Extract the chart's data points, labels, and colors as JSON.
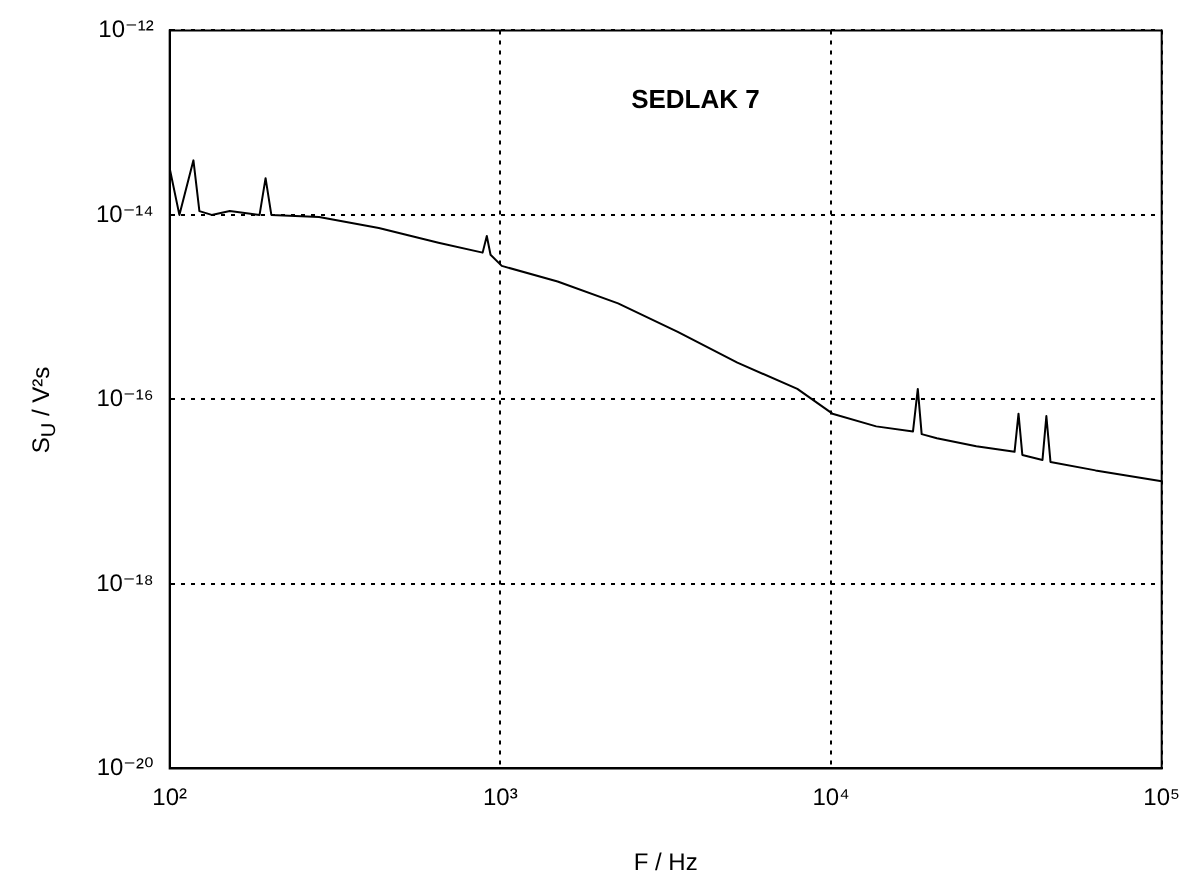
{
  "chart_data": {
    "type": "line",
    "xlabel": "F / Hz",
    "ylabel": "S$_{U}$ / V²s",
    "annotations": [
      "SEDLAK 7"
    ],
    "x": [
      100,
      107,
      118,
      123,
      134,
      152,
      187,
      195,
      203,
      283,
      429,
      650,
      884,
      910,
      934,
      1010,
      1490,
      2270,
      3440,
      5210,
      7910,
      10100,
      13700,
      17700,
      18300,
      18800,
      20900,
      27500,
      35900,
      36900,
      37900,
      43600,
      44800,
      46100,
      63100,
      100000
    ],
    "series": [
      {
        "color": "#000000",
        "values": [
          3.2e-14,
          1e-14,
          3.9e-14,
          1.1e-14,
          1e-14,
          1.1e-14,
          1e-14,
          2.5e-14,
          1e-14,
          9.5e-15,
          7.2e-15,
          5e-15,
          3.9e-15,
          5.9e-15,
          3.7e-15,
          2.8e-15,
          1.9e-15,
          1.1e-15,
          5.4e-16,
          2.5e-16,
          1.3e-16,
          7e-17,
          5.1e-17,
          4.5e-17,
          1.3e-16,
          4.2e-17,
          3.8e-17,
          3.1e-17,
          2.7e-17,
          7e-17,
          2.5e-17,
          2.2e-17,
          6.6e-17,
          2.1e-17,
          1.7e-17,
          1.3e-17
        ]
      }
    ],
    "log": "xy",
    "xlim": [
      100,
      100000
    ],
    "ylim": [
      1e-20,
      1e-12
    ],
    "xticks": [
      {
        "value": 100,
        "label": "10²"
      },
      {
        "value": 1000,
        "label": "10³"
      },
      {
        "value": 10000,
        "label": "10⁴"
      },
      {
        "value": 100000,
        "label": "10⁵"
      }
    ],
    "yticks": [
      {
        "value": 1e-20,
        "label": "10⁻²⁰"
      },
      {
        "value": 1e-18,
        "label": "10⁻¹⁸"
      },
      {
        "value": 1e-16,
        "label": "10⁻¹⁶"
      },
      {
        "value": 1e-14,
        "label": "10⁻¹⁴"
      },
      {
        "value": 1e-12,
        "label": "10⁻¹²"
      }
    ],
    "grid": true,
    "marker": "none",
    "line_style": "solid"
  }
}
